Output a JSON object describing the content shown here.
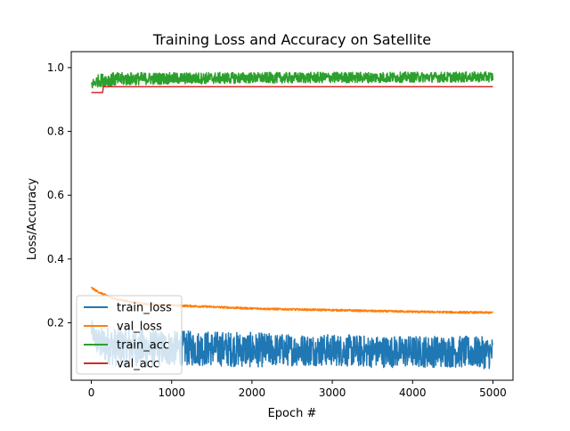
{
  "chart_data": {
    "type": "line",
    "title": "Training Loss and Accuracy on Satellite",
    "xlabel": "Epoch #",
    "ylabel": "Loss/Accuracy",
    "xlim": [
      -250,
      5250
    ],
    "ylim": [
      0.02,
      1.05
    ],
    "xticks": [
      "0",
      "1000",
      "2000",
      "3000",
      "4000",
      "5000"
    ],
    "xtick_values": [
      0,
      1000,
      2000,
      3000,
      4000,
      5000
    ],
    "yticks": [
      "0.2",
      "0.4",
      "0.6",
      "0.8",
      "1.0"
    ],
    "ytick_values": [
      0.2,
      0.4,
      0.6,
      0.8,
      1.0
    ],
    "grid": false,
    "legend_position": "lower-left",
    "series": [
      {
        "name": "train_loss",
        "color": "#1f77b4",
        "x": [
          0,
          50,
          100,
          200,
          300,
          500,
          700,
          1000,
          1500,
          2000,
          2500,
          3000,
          3500,
          4000,
          4500,
          5000
        ],
        "values": [
          0.18,
          0.15,
          0.135,
          0.13,
          0.125,
          0.125,
          0.12,
          0.12,
          0.12,
          0.115,
          0.115,
          0.115,
          0.11,
          0.11,
          0.11,
          0.105
        ],
        "noise": [
          0.03,
          0.04,
          0.05,
          0.06,
          0.06,
          0.06,
          0.06,
          0.055,
          0.055,
          0.055,
          0.05,
          0.05,
          0.05,
          0.05,
          0.05,
          0.05
        ]
      },
      {
        "name": "val_loss",
        "color": "#ff7f0e",
        "x": [
          0,
          50,
          100,
          200,
          300,
          500,
          700,
          1000,
          1500,
          2000,
          2500,
          3000,
          3500,
          4000,
          4500,
          5000
        ],
        "values": [
          0.31,
          0.302,
          0.295,
          0.285,
          0.275,
          0.265,
          0.258,
          0.255,
          0.25,
          0.245,
          0.242,
          0.24,
          0.237,
          0.235,
          0.233,
          0.232
        ],
        "noise": [
          0.003,
          0.003,
          0.003,
          0.003,
          0.003,
          0.003,
          0.003,
          0.003,
          0.003,
          0.003,
          0.003,
          0.003,
          0.003,
          0.003,
          0.003,
          0.003
        ]
      },
      {
        "name": "train_acc",
        "color": "#2ca02c",
        "x": [
          0,
          50,
          100,
          200,
          500,
          1000,
          1500,
          2000,
          2500,
          3000,
          3500,
          4000,
          4500,
          5000
        ],
        "values": [
          0.945,
          0.955,
          0.96,
          0.962,
          0.965,
          0.966,
          0.967,
          0.968,
          0.968,
          0.969,
          0.969,
          0.97,
          0.97,
          0.971
        ],
        "noise": [
          0.015,
          0.018,
          0.02,
          0.022,
          0.02,
          0.018,
          0.018,
          0.017,
          0.017,
          0.017,
          0.017,
          0.016,
          0.016,
          0.016
        ]
      },
      {
        "name": "val_acc",
        "color": "#d62728",
        "x": [
          0,
          140,
          150,
          1000,
          2000,
          3000,
          4000,
          5000
        ],
        "values": [
          0.922,
          0.922,
          0.94,
          0.94,
          0.94,
          0.94,
          0.94,
          0.94
        ],
        "noise": [
          0,
          0,
          0,
          0,
          0,
          0,
          0,
          0
        ]
      }
    ]
  }
}
